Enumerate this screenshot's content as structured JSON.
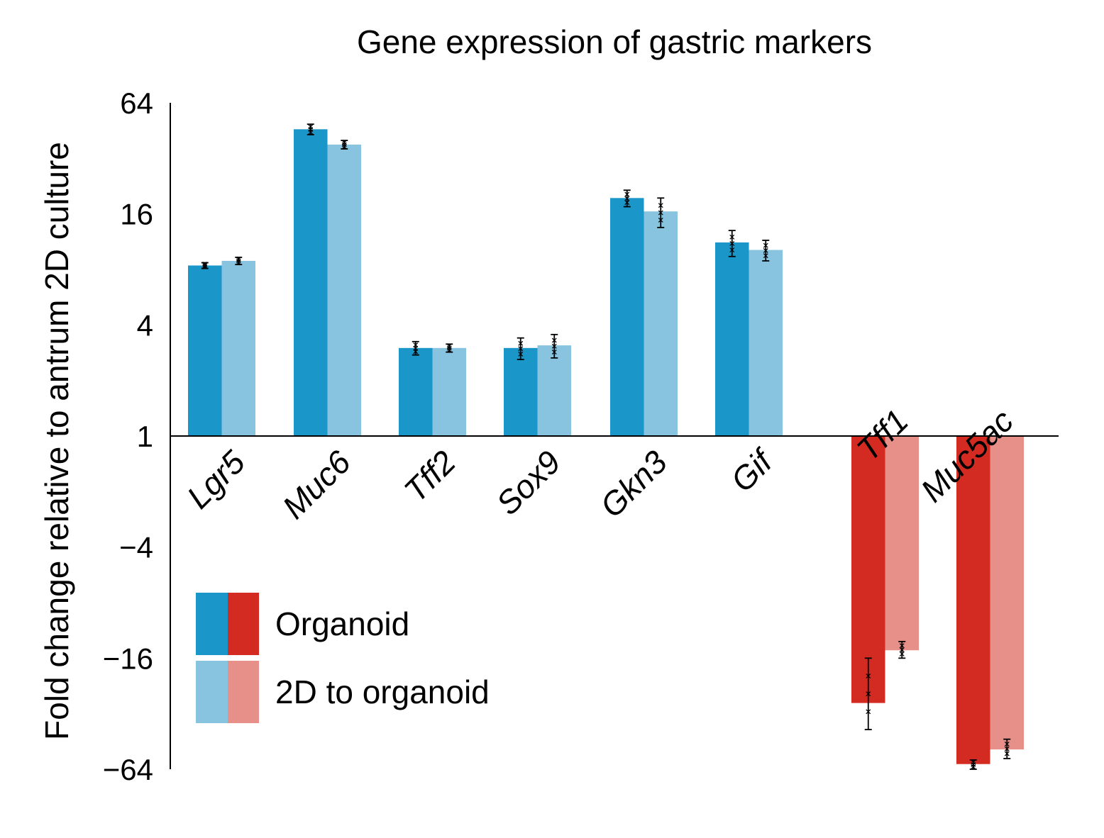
{
  "chart_data": {
    "type": "bar",
    "title": "Gene expression of gastric markers",
    "xlabel": "",
    "ylabel": "Fold change relative to antrum 2D culture",
    "y_scale": "log2",
    "ylim": [
      -64,
      64
    ],
    "yticks": [
      64,
      16,
      4,
      1,
      -4,
      -16,
      -64
    ],
    "ytick_labels": [
      "64",
      "16",
      "4",
      "1",
      "−4",
      "−16",
      "−64"
    ],
    "categories": [
      "Lgr5",
      "Muc6",
      "Tff2",
      "Sox9",
      "Gkn3",
      "Gif",
      "Tff1",
      "Muc5ac"
    ],
    "series": [
      {
        "name": "Organoid",
        "values": [
          8.4,
          46,
          3.0,
          3.0,
          19.5,
          11.2,
          -28,
          -60
        ],
        "err_low": [
          0.3,
          3,
          0.25,
          0.4,
          2.0,
          1.8,
          11,
          4
        ],
        "err_high": [
          0.3,
          3,
          0.25,
          0.4,
          2.0,
          1.8,
          12,
          3
        ]
      },
      {
        "name": "2D to organoid",
        "values": [
          8.9,
          38,
          3.0,
          3.1,
          16.5,
          10.2,
          -14.5,
          -50
        ],
        "err_low": [
          0.4,
          2,
          0.15,
          0.45,
          3.0,
          1.3,
          1.5,
          6
        ],
        "err_high": [
          0.4,
          2,
          0.15,
          0.45,
          3.0,
          1.3,
          1.5,
          6
        ]
      }
    ],
    "colors": {
      "organoid_up": "#1b96c8",
      "organoid_down": "#d32b22",
      "two_d_up": "#88c4df",
      "two_d_down": "#e69089"
    },
    "legend": {
      "position": "bottom-left",
      "entries": [
        "Organoid",
        "2D to organoid"
      ]
    }
  }
}
